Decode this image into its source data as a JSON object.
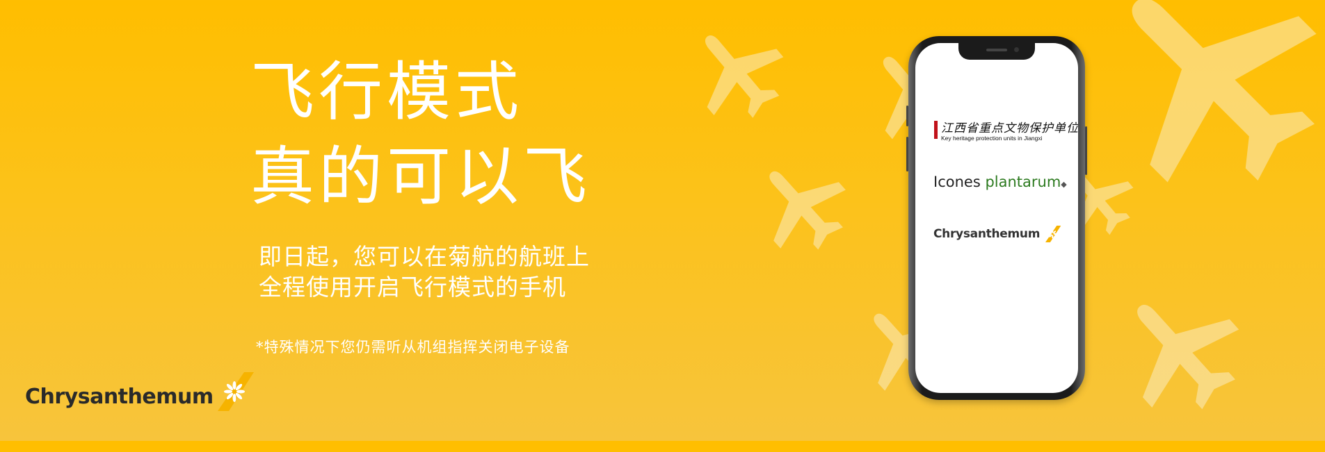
{
  "headline": {
    "line1": "飞行模式",
    "line2": "真的可以飞"
  },
  "subtext": {
    "line1": "即日起，您可以在菊航的航班上",
    "line2": "全程使用开启飞行模式的手机"
  },
  "note": "*特殊情况下您仍需听从机组指挥关闭电子设备",
  "brand": {
    "name": "Chrysanthemum",
    "logo_icon": "chrysanthemum-flower-icon"
  },
  "phone": {
    "partner1": {
      "cn": "江西省重点文物保护单位",
      "en": "Key heritage protection units in Jiangxi"
    },
    "partner2": {
      "part1": "Icones ",
      "part2": "plantarum",
      "symbol": "◆"
    },
    "partner3": {
      "name": "Chrysanthemum"
    }
  },
  "colors": {
    "background_top": "#ffbe00",
    "background_bottom": "#f7c43c",
    "accent_red": "#c1121a",
    "accent_green": "#2c7a1f",
    "plane_color": "#fbecc0"
  },
  "decor": {
    "icon": "airplane-icon"
  }
}
